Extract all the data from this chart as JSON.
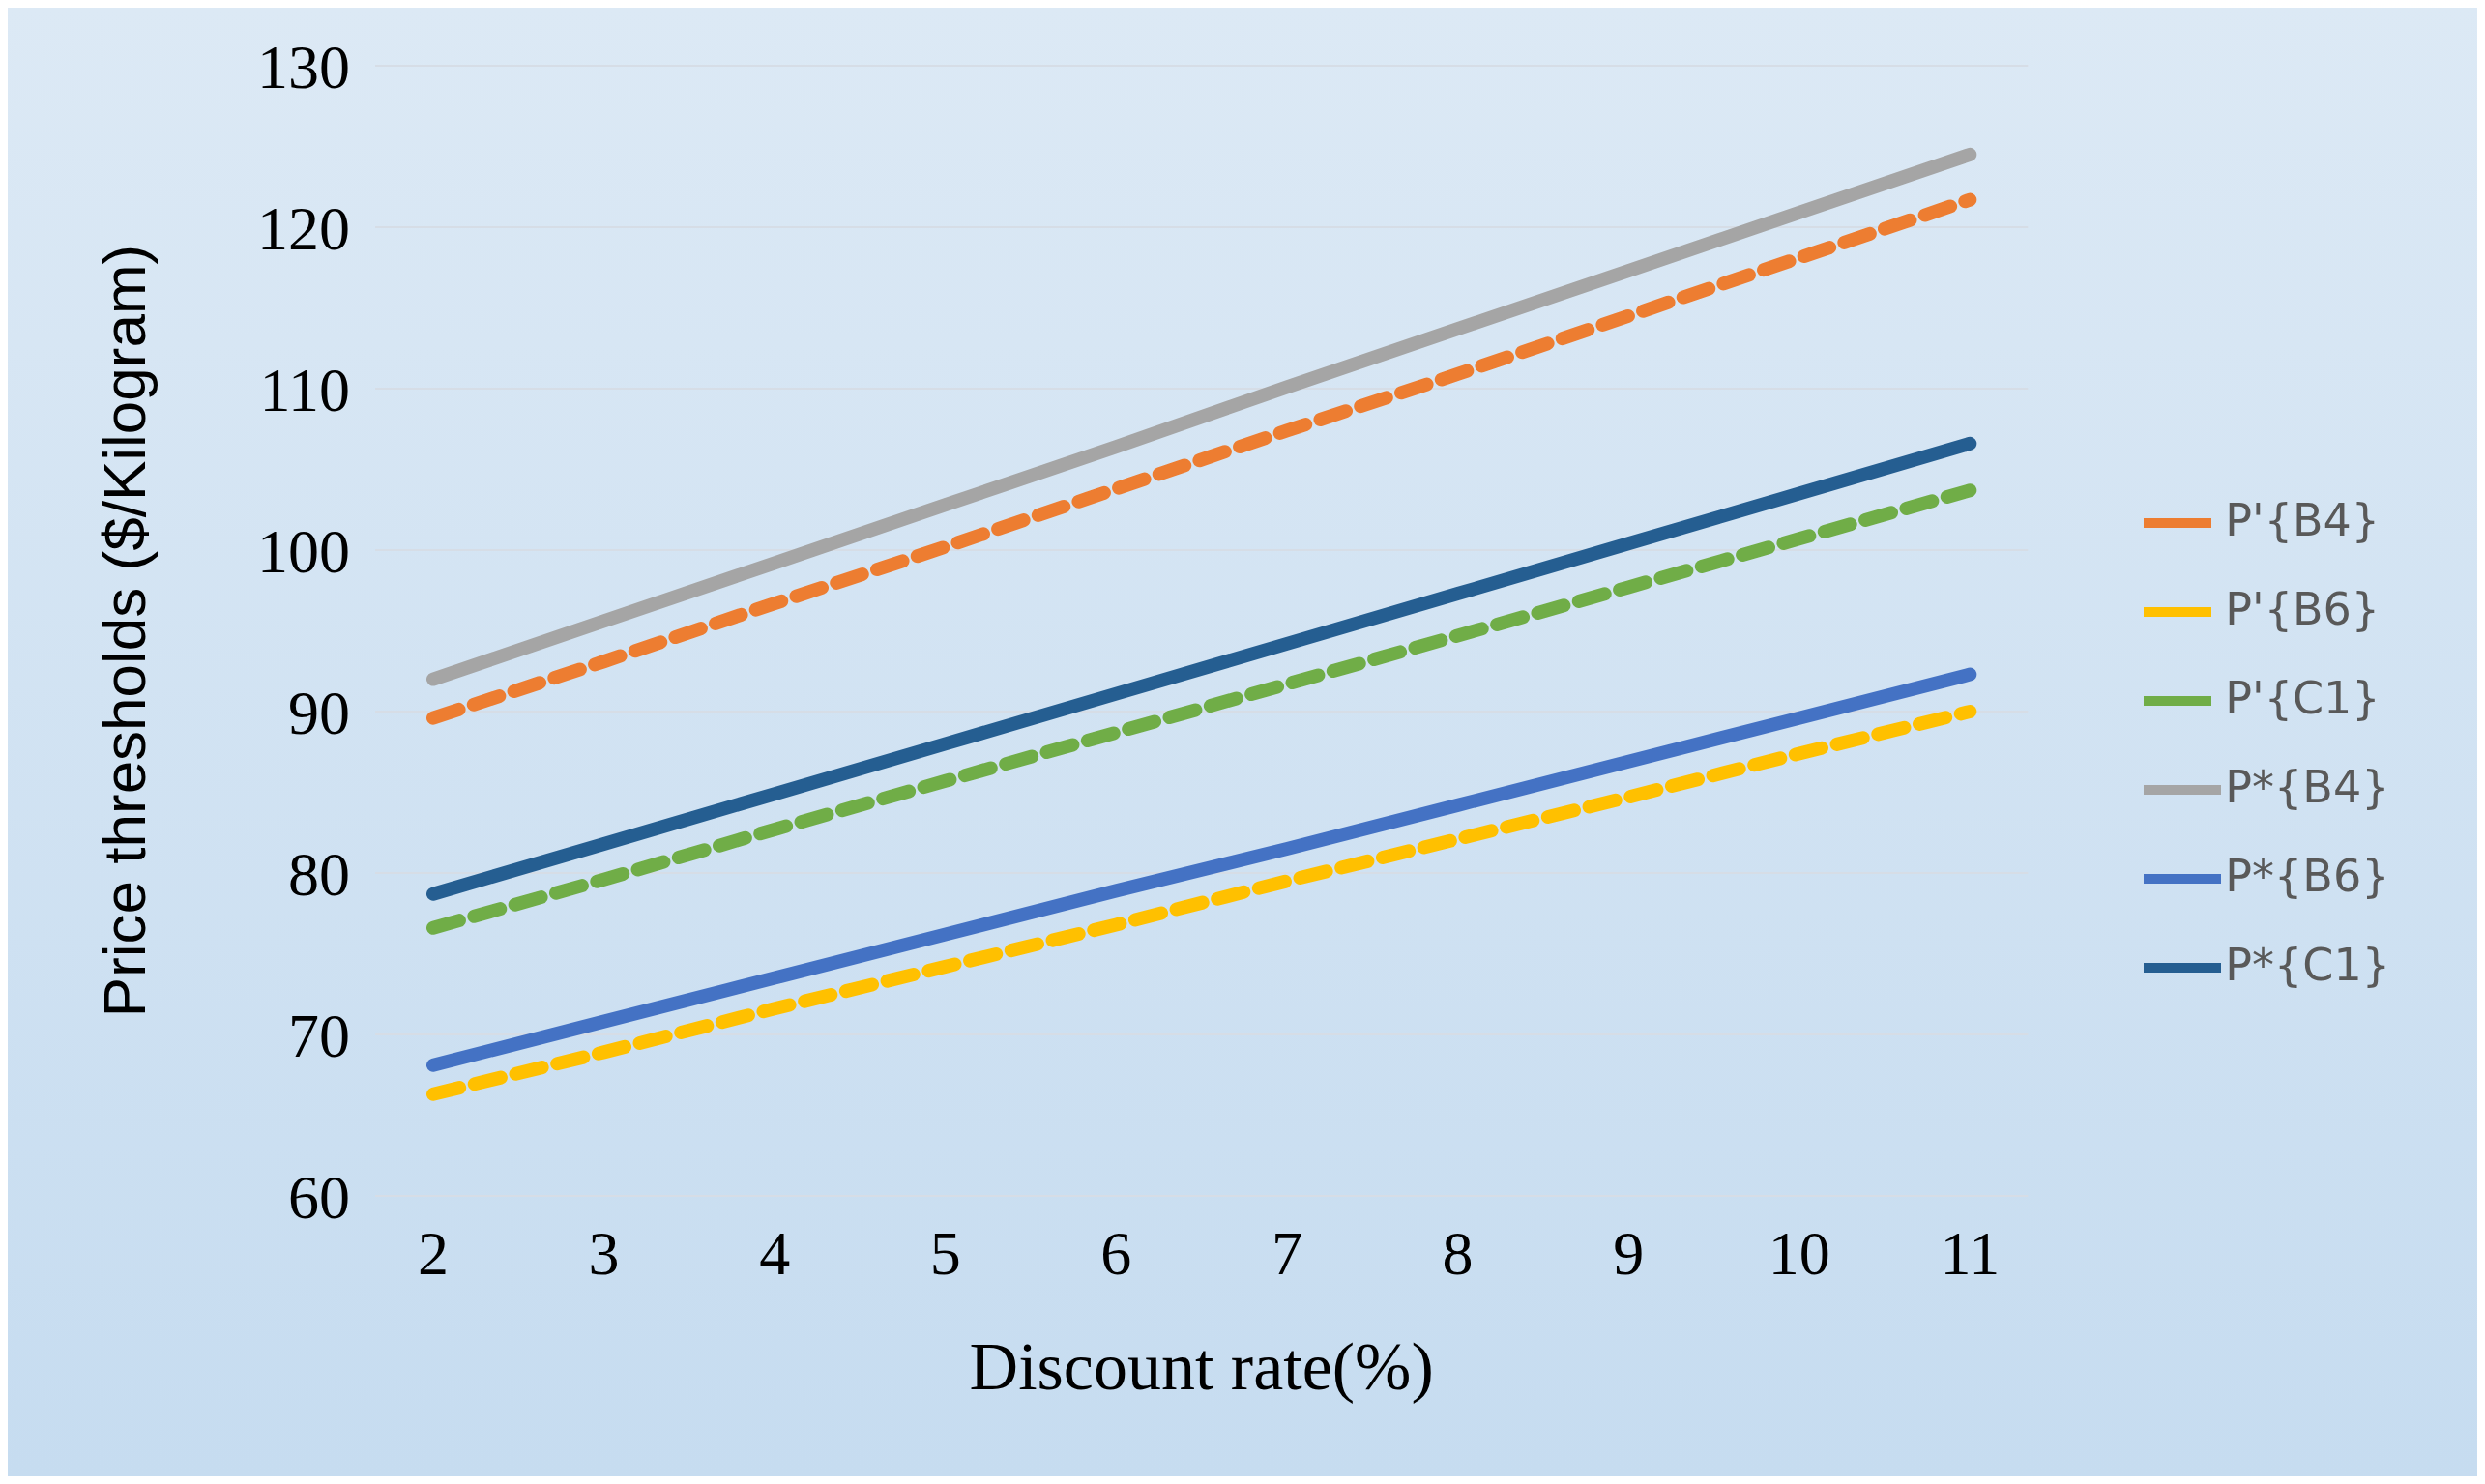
{
  "chart_data": {
    "type": "line",
    "xlabel": "Discount rate(%)",
    "ylabel": "Price thresholds ($/Kilogram)",
    "categories": [
      "2",
      "3",
      "4",
      "5",
      "6",
      "7",
      "8",
      "9",
      "10",
      "11"
    ],
    "ylim": [
      60,
      130
    ],
    "yticks": [
      60,
      70,
      80,
      90,
      100,
      110,
      120,
      130
    ],
    "grid": "y",
    "legend": "right",
    "marker": "none",
    "series": [
      {
        "name": "P'{B4}",
        "color": "#ed7d31",
        "line_style": "dashed",
        "values": [
          89.6,
          93.1,
          96.7,
          100.2,
          103.8,
          107.4,
          110.9,
          114.5,
          118.1,
          121.7
        ]
      },
      {
        "name": "P*{B4}",
        "color": "#a5a5a5",
        "line_style": "solid",
        "values": [
          92.0,
          95.6,
          99.2,
          102.8,
          106.4,
          110.1,
          113.7,
          117.3,
          120.9,
          124.5
        ]
      },
      {
        "name": "P'{B6}",
        "color": "#ffc000",
        "line_style": "dashed",
        "values": [
          66.3,
          68.9,
          71.6,
          74.2,
          76.8,
          79.5,
          82.1,
          84.7,
          87.4,
          90.0
        ]
      },
      {
        "name": "P*{B6}",
        "color": "#4472c4",
        "line_style": "solid",
        "values": [
          68.1,
          70.8,
          73.5,
          76.2,
          78.9,
          81.5,
          84.2,
          86.9,
          89.6,
          92.3
        ]
      },
      {
        "name": "P'{C1}",
        "color": "#70ad47",
        "line_style": "dashed",
        "values": [
          76.6,
          79.6,
          82.7,
          85.7,
          88.7,
          91.7,
          94.7,
          97.7,
          100.7,
          103.7
        ]
      },
      {
        "name": "P*{C1}",
        "color": "#255e91",
        "line_style": "solid",
        "values": [
          78.7,
          81.8,
          84.9,
          88.0,
          91.1,
          94.2,
          97.3,
          100.4,
          103.5,
          106.6
        ]
      }
    ]
  }
}
